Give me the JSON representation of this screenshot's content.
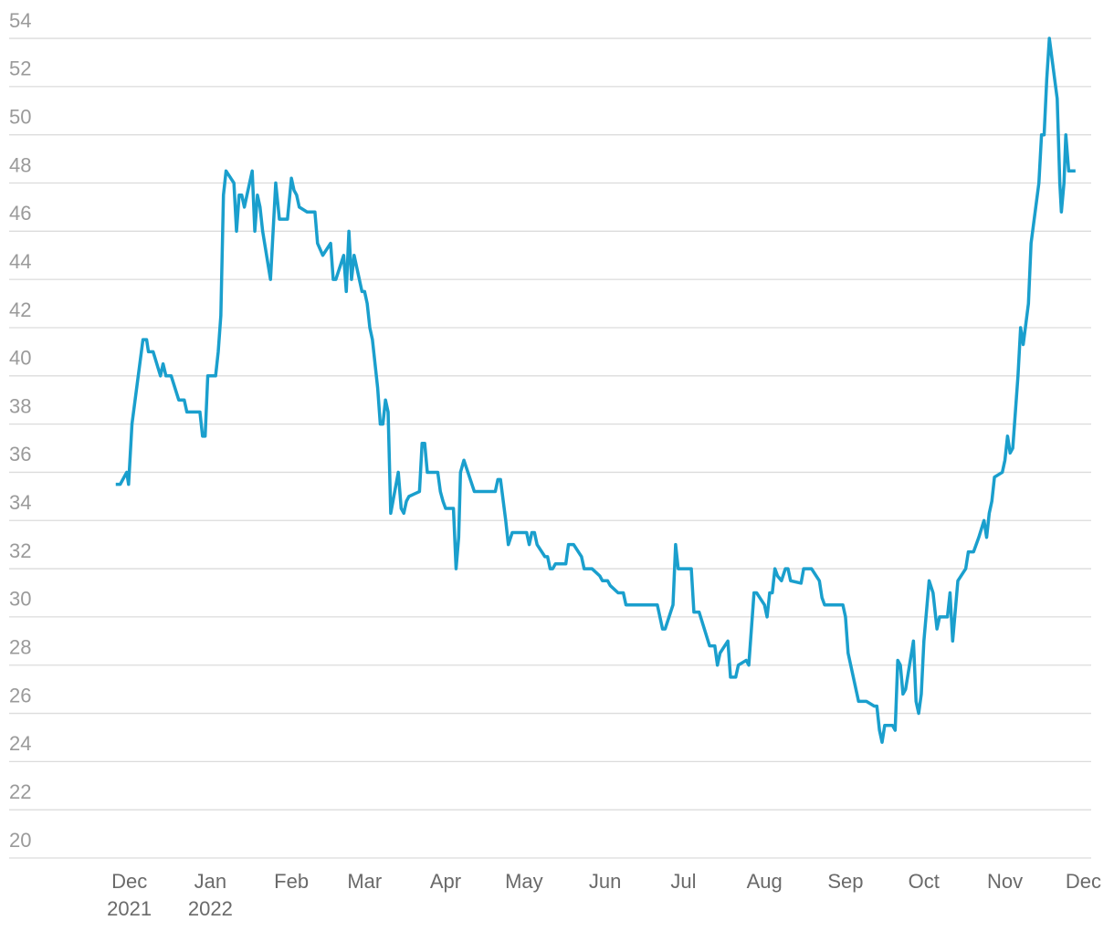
{
  "chart_data": {
    "type": "line",
    "color": "#1a9fcd",
    "grid": true,
    "xlim": [
      -46,
      368
    ],
    "ylim": [
      20,
      55.1
    ],
    "yticks": [
      20,
      22,
      24,
      26,
      28,
      30,
      32,
      34,
      36,
      38,
      40,
      42,
      44,
      46,
      48,
      50,
      52,
      54
    ],
    "xticks": [
      {
        "value": 0,
        "label": "Dec\n2021"
      },
      {
        "value": 31,
        "label": "Jan\n2022"
      },
      {
        "value": 62,
        "label": "Feb"
      },
      {
        "value": 90,
        "label": "Mar"
      },
      {
        "value": 121,
        "label": "Apr"
      },
      {
        "value": 151,
        "label": "May"
      },
      {
        "value": 182,
        "label": "Jun"
      },
      {
        "value": 212,
        "label": "Jul"
      },
      {
        "value": 243,
        "label": "Aug"
      },
      {
        "value": 274,
        "label": "Sep"
      },
      {
        "value": 304,
        "label": "Oct"
      },
      {
        "value": 335,
        "label": "Nov"
      },
      {
        "value": 365,
        "label": "Dec"
      }
    ],
    "x": [
      -5.2,
      -3.5,
      -1,
      -0.3,
      1,
      2.8,
      5.2,
      6.6,
      7.3,
      9.1,
      11.9,
      12.9,
      14,
      16,
      18.9,
      21,
      22,
      27,
      28,
      29,
      30,
      33,
      34,
      35,
      36,
      37,
      40,
      41,
      42,
      43,
      44,
      47,
      48,
      49,
      50,
      51,
      54,
      56,
      57.4,
      60.5,
      62,
      63,
      64,
      65,
      68,
      71,
      72,
      74,
      77,
      78,
      79,
      82,
      83,
      84,
      85,
      86,
      89,
      90,
      91,
      92,
      93,
      95,
      96,
      97,
      98,
      99,
      100,
      102.9,
      104,
      105,
      106,
      107,
      109,
      111,
      112,
      113,
      114,
      118,
      119,
      120,
      121,
      124,
      125,
      126,
      126.7,
      128,
      132,
      140,
      141,
      142,
      144,
      145,
      146.5,
      152,
      153,
      154,
      155,
      156,
      159,
      160,
      161,
      162,
      163,
      167,
      168,
      170,
      173,
      174,
      177,
      180,
      181,
      183,
      184,
      187,
      189,
      190,
      202,
      204,
      205,
      208,
      209,
      210,
      215,
      216,
      218,
      220,
      222,
      224,
      225,
      226,
      229,
      230,
      232,
      233,
      236,
      237,
      239,
      240,
      243,
      244,
      245,
      246,
      247,
      248,
      249.5,
      251,
      252,
      253,
      257,
      258,
      261,
      264,
      265,
      266,
      273,
      274,
      275,
      279,
      282,
      285,
      286,
      287,
      288,
      289,
      292,
      293,
      294,
      295,
      296,
      297,
      300,
      301,
      302,
      303,
      304,
      306,
      307.5,
      309,
      310,
      313,
      314,
      315,
      317,
      320,
      321,
      323,
      325,
      327,
      328,
      329,
      330,
      331,
      334,
      335,
      336,
      337,
      338,
      340,
      341,
      342,
      344,
      345,
      348,
      349,
      350,
      351,
      352,
      355,
      356,
      356.6,
      357.6,
      358.3,
      359.4,
      362
    ],
    "values": [
      35.5,
      35.5,
      36,
      35.5,
      38,
      39.5,
      41.5,
      41.5,
      41,
      41,
      40,
      40.5,
      40,
      40,
      39,
      39,
      38.5,
      38.5,
      37.5,
      37.5,
      40,
      40,
      41,
      42.5,
      47.5,
      48.5,
      48,
      46,
      47.5,
      47.5,
      47,
      48.5,
      46,
      47.5,
      47,
      46,
      44,
      48,
      46.5,
      46.5,
      48.2,
      47.7,
      47.5,
      47,
      46.8,
      46.8,
      45.5,
      45,
      45.5,
      44,
      44,
      45,
      43.5,
      46,
      44,
      45,
      43.5,
      43.5,
      43,
      42,
      41.5,
      39.5,
      38,
      38,
      39,
      38.5,
      34.3,
      36,
      34.5,
      34.3,
      34.8,
      35,
      35.1,
      35.2,
      37.2,
      37.2,
      36,
      36,
      35.2,
      34.8,
      34.5,
      34.5,
      32,
      33.3,
      36,
      36.5,
      35.2,
      35.2,
      35.7,
      35.7,
      34,
      33,
      33.5,
      33.5,
      33,
      33.5,
      33.5,
      33,
      32.5,
      32.5,
      32,
      32,
      32.2,
      32.2,
      33,
      33,
      32.5,
      32,
      32,
      31.7,
      31.5,
      31.5,
      31.3,
      31,
      31,
      30.5,
      30.5,
      29.5,
      29.5,
      30.5,
      33,
      32,
      32,
      30.2,
      30.2,
      29.5,
      28.8,
      28.8,
      28,
      28.5,
      29,
      27.5,
      27.5,
      28,
      28.2,
      28,
      31,
      31,
      30.5,
      30,
      31,
      31,
      32,
      31.7,
      31.5,
      32,
      32,
      31.5,
      31.4,
      32,
      32,
      31.5,
      30.8,
      30.5,
      30.5,
      30,
      28.5,
      26.5,
      26.5,
      26.3,
      26.3,
      25.3,
      24.8,
      25.5,
      25.5,
      25.3,
      28.2,
      28,
      26.8,
      27,
      29,
      26.5,
      26,
      26.8,
      29,
      31.5,
      31,
      29.5,
      30,
      30,
      31,
      29,
      31.5,
      32,
      32.7,
      32.7,
      33.3,
      34,
      33.3,
      34.3,
      34.8,
      35.8,
      36,
      36.5,
      37.5,
      36.8,
      37,
      40,
      42,
      41.3,
      43,
      45.5,
      48,
      50,
      50,
      52.3,
      54,
      51.5,
      48,
      46.8,
      48,
      50,
      48.5,
      48.5
    ]
  }
}
